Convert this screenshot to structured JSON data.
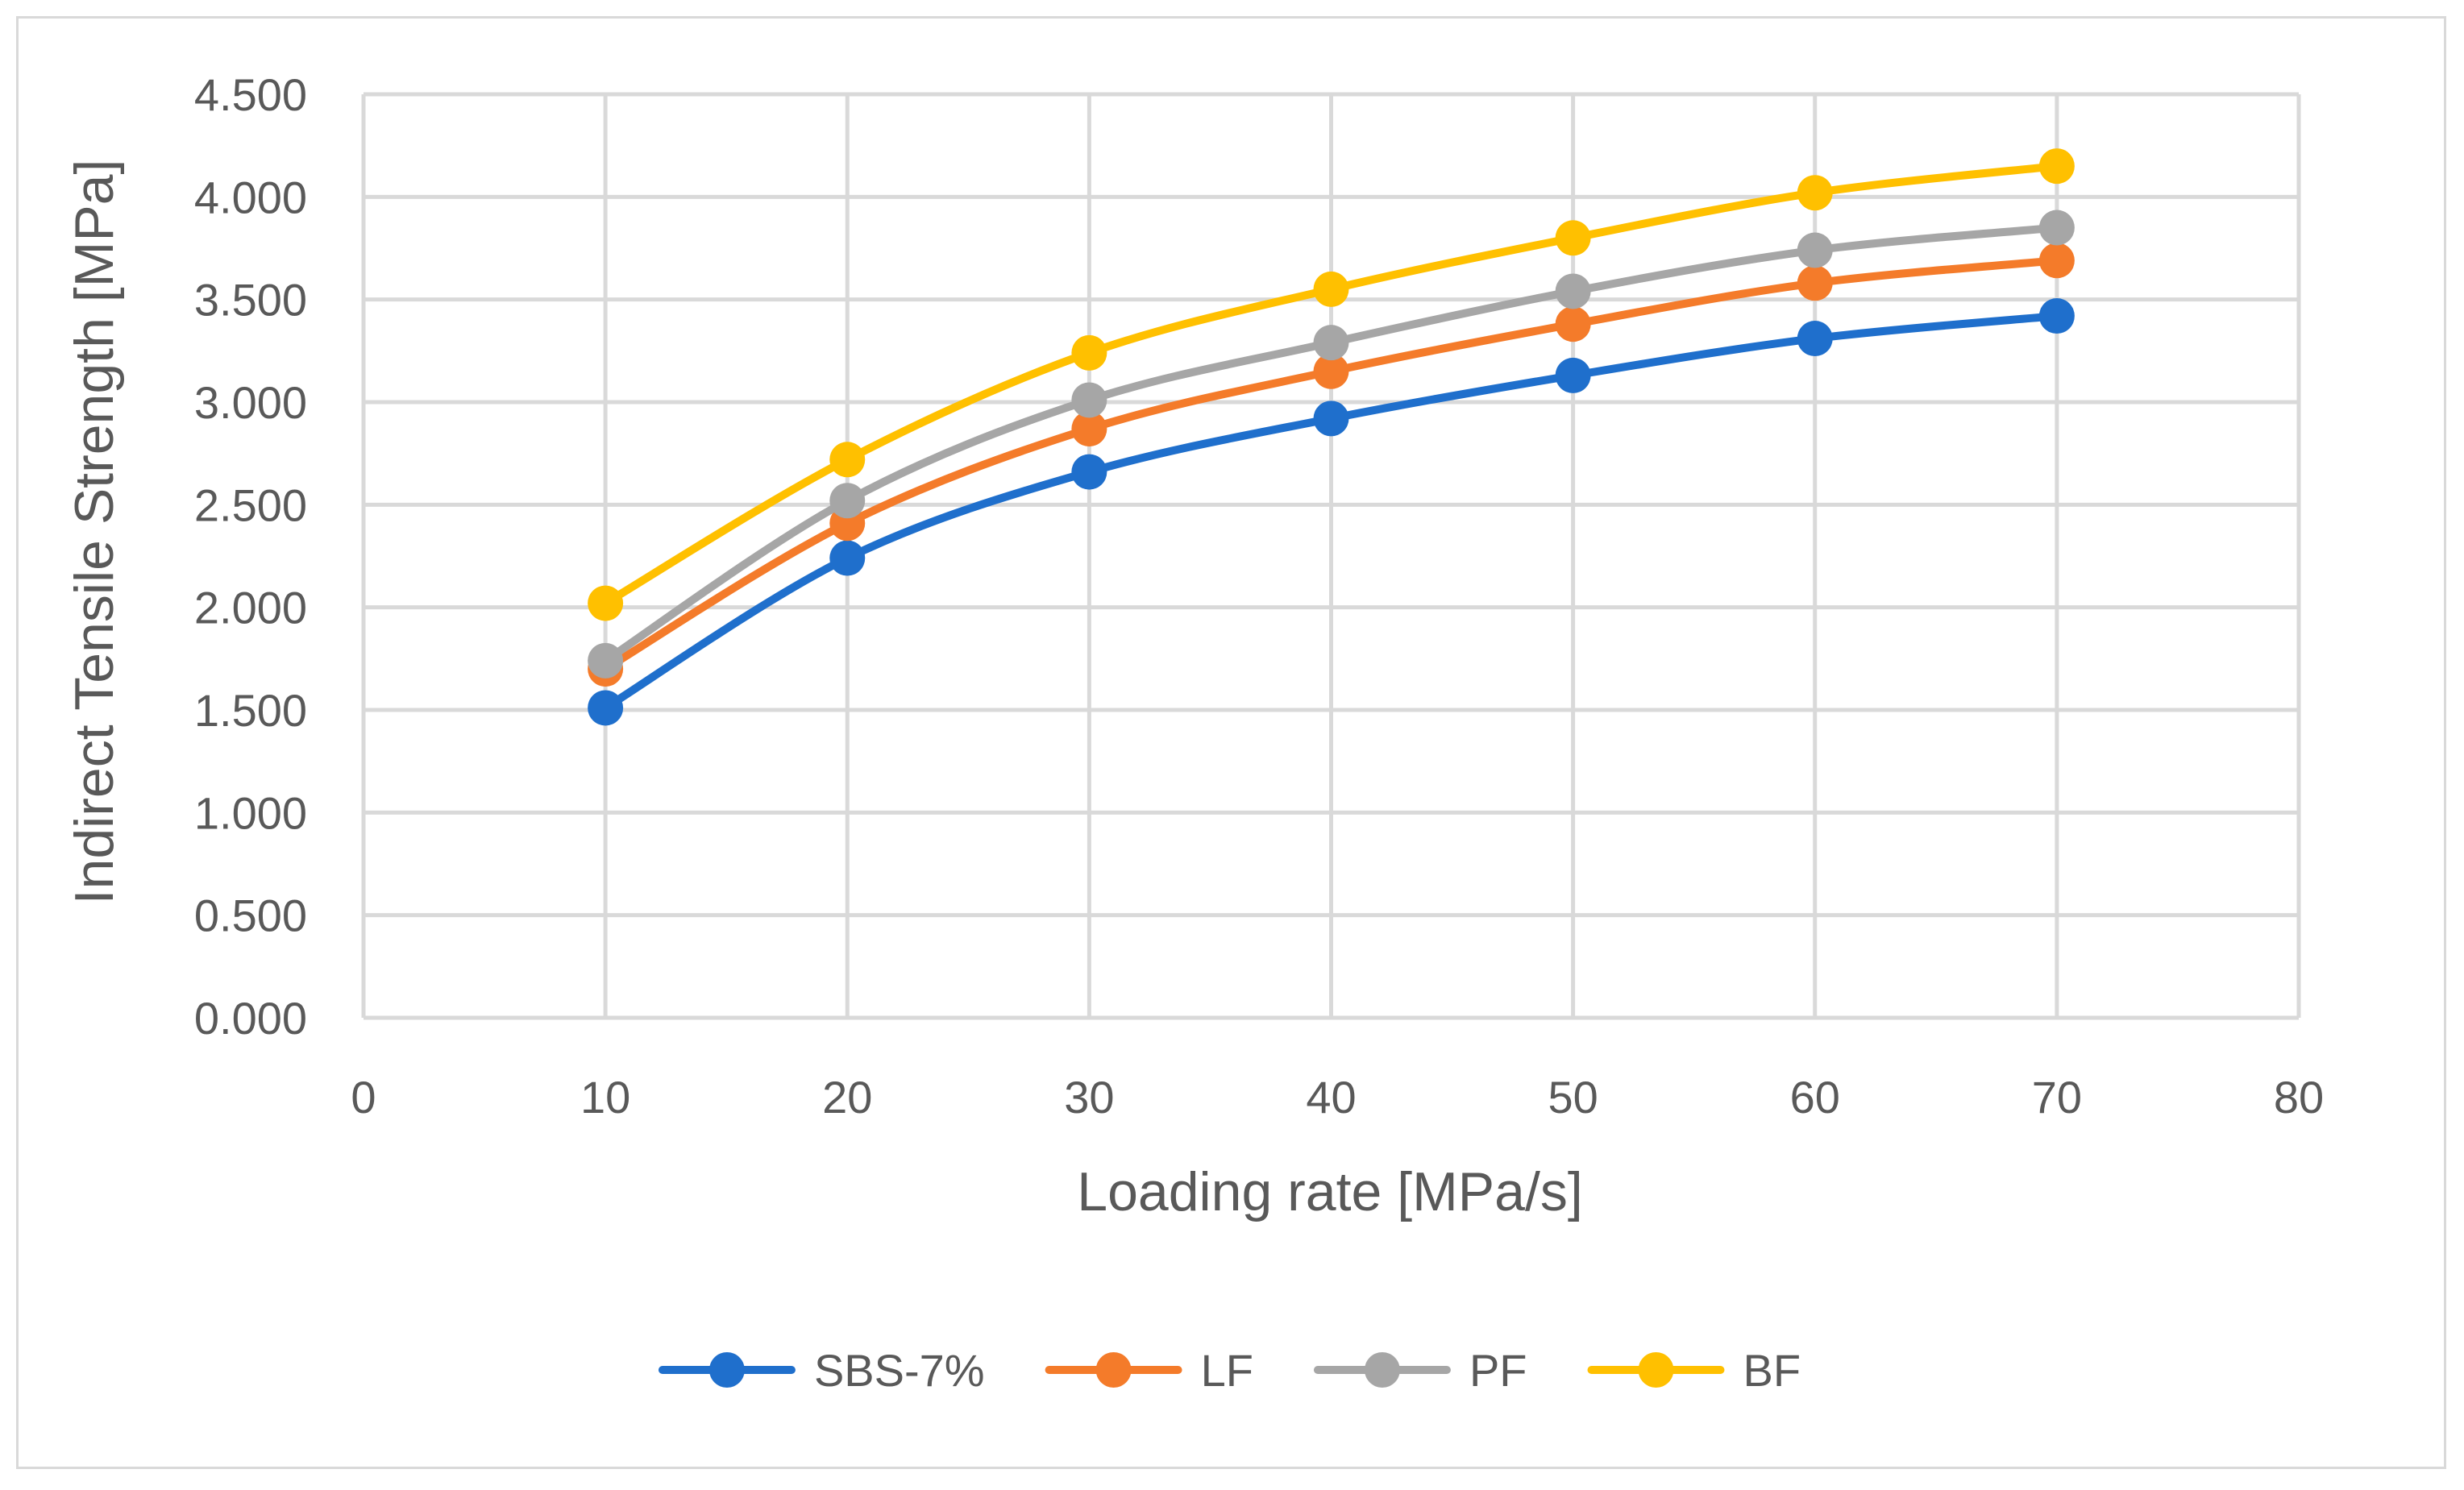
{
  "chart_data": {
    "type": "line",
    "title": "",
    "xlabel": "Loading rate [MPa/s]",
    "ylabel": "Indirect Tensile Strength [MPa]",
    "xlim": [
      0,
      80
    ],
    "ylim": [
      0,
      4.5
    ],
    "x_ticks": [
      0,
      10,
      20,
      30,
      40,
      50,
      60,
      70,
      80
    ],
    "y_ticks": [
      0,
      0.5,
      1,
      1.5,
      2,
      2.5,
      3,
      3.5,
      4,
      4.5
    ],
    "y_tick_labels": [
      "0.000",
      "0.500",
      "1.000",
      "1.500",
      "2.000",
      "2.500",
      "3.000",
      "3.500",
      "4.000",
      "4.500"
    ],
    "grid": true,
    "legend_position": "bottom",
    "x": [
      10,
      20,
      30,
      40,
      50,
      60,
      70
    ],
    "series": [
      {
        "name": "SBS-7%",
        "color": "#1f6fcc",
        "values": [
          1.51,
          2.24,
          2.66,
          2.92,
          3.13,
          3.31,
          3.42
        ]
      },
      {
        "name": "LF",
        "color": "#f47b2a",
        "values": [
          1.7,
          2.41,
          2.87,
          3.15,
          3.38,
          3.58,
          3.69
        ]
      },
      {
        "name": "PF",
        "color": "#a6a6a6",
        "values": [
          1.74,
          2.52,
          3.01,
          3.29,
          3.54,
          3.74,
          3.85
        ]
      },
      {
        "name": "BF",
        "color": "#ffc000",
        "values": [
          2.02,
          2.72,
          3.24,
          3.55,
          3.8,
          4.02,
          4.15
        ]
      }
    ]
  }
}
